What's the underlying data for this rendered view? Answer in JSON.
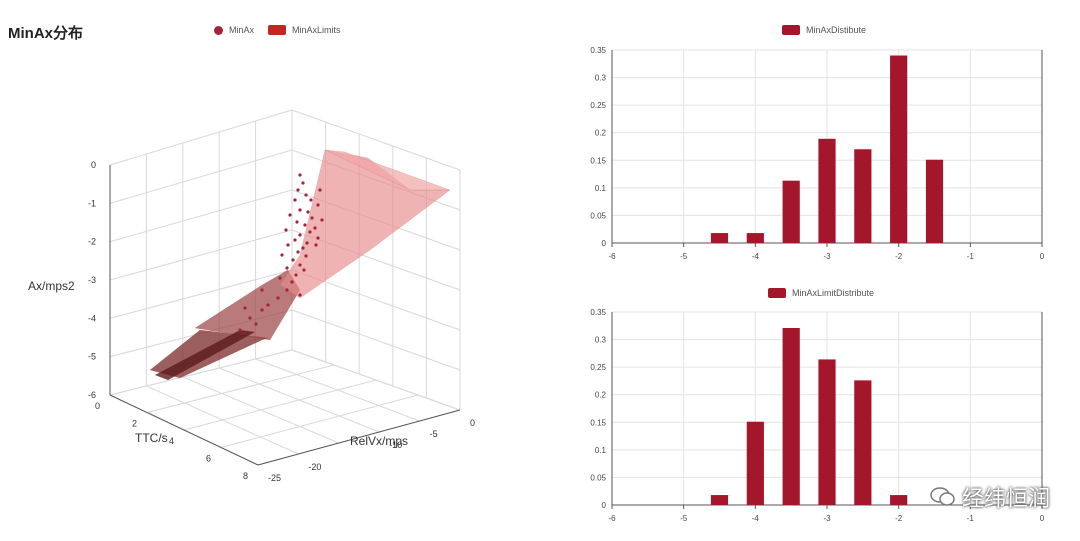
{
  "page": {
    "title": "MinAx分布",
    "watermark": "经纬恒润"
  },
  "scatter3d": {
    "legend": [
      {
        "label": "MinAx",
        "shape": "dot",
        "color": "#a3243b"
      },
      {
        "label": "MinAxLimits",
        "shape": "rect",
        "color": "#c0271f"
      }
    ],
    "x_axis": {
      "label": "TTC/s",
      "ticks": [
        "0",
        "2",
        "4",
        "6",
        "8"
      ]
    },
    "y_axis": {
      "label": "RelVx/mps",
      "ticks": [
        "-25",
        "-20",
        "-10",
        "-5",
        "0"
      ]
    },
    "z_axis": {
      "label": "Ax/mps2",
      "ticks": [
        "0",
        "-1",
        "-2",
        "-3",
        "-4",
        "-5",
        "-6"
      ]
    }
  },
  "chart_data": [
    {
      "type": "bar",
      "legend": "MinAxDistibute",
      "color": "#a3162c",
      "x": [
        -4.5,
        -4,
        -3.5,
        -3,
        -2.5,
        -2,
        -1.5
      ],
      "values": [
        0.018,
        0.018,
        0.113,
        0.189,
        0.17,
        0.34,
        0.151
      ],
      "xlim": [
        -6,
        0
      ],
      "ylim": [
        0,
        0.35
      ],
      "xticks": [
        "-6",
        "-5",
        "-4",
        "-3",
        "-2",
        "-1",
        "0"
      ],
      "yticks": [
        "0",
        "0.05",
        "0.1",
        "0.15",
        "0.2",
        "0.25",
        "0.3",
        "0.35"
      ],
      "grid": true
    },
    {
      "type": "bar",
      "legend": "MinAxLimitDistribute",
      "color": "#a3162c",
      "x": [
        -4.5,
        -4,
        -3.5,
        -3,
        -2.5,
        -2
      ],
      "values": [
        0.018,
        0.151,
        0.321,
        0.264,
        0.226,
        0.018
      ],
      "xlim": [
        -6,
        0
      ],
      "ylim": [
        0,
        0.35
      ],
      "xticks": [
        "-6",
        "-5",
        "-4",
        "-3",
        "-2",
        "-1",
        "0"
      ],
      "yticks": [
        "0",
        "0.05",
        "0.1",
        "0.15",
        "0.2",
        "0.25",
        "0.3",
        "0.35"
      ],
      "grid": true
    }
  ]
}
